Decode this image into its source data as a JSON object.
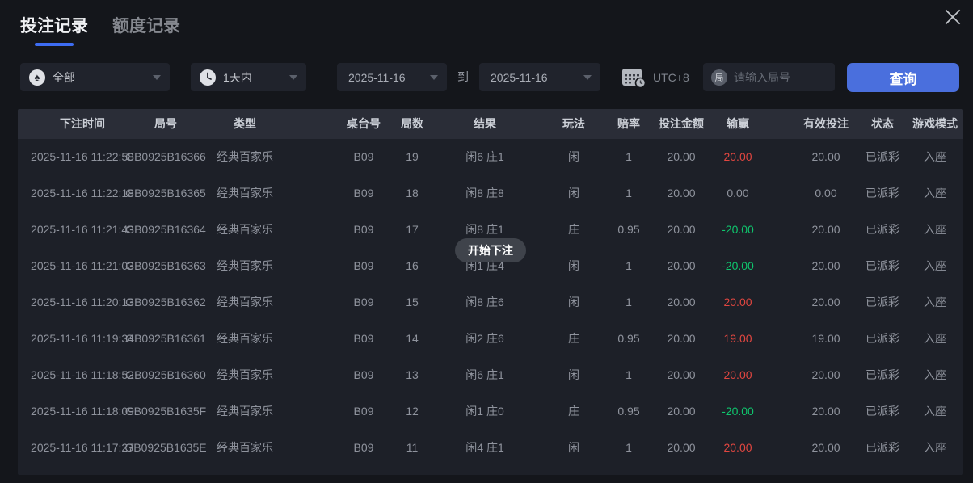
{
  "tabs": {
    "betting": "投注记录",
    "quota": "额度记录"
  },
  "filters": {
    "game_select": "全部",
    "range_select": "1天内",
    "date_from": "2025-11-16",
    "to_label": "到",
    "date_to": "2025-11-16",
    "timezone": "UTC+8",
    "round_icon_char": "局",
    "round_placeholder": "请输入局号",
    "query_button": "查询"
  },
  "toast": "开始下注",
  "table": {
    "columns": [
      "下注时间",
      "局号",
      "类型",
      "桌台号",
      "局数",
      "结果",
      "玩法",
      "赔率",
      "投注金额",
      "输赢",
      "有效投注",
      "状态",
      "游戏模式"
    ],
    "rows": [
      {
        "cells": [
          "2025-11-16 11:22:58",
          "GB0925B16366",
          "经典百家乐",
          "B09",
          "19",
          "闲6 庄1",
          "闲",
          "1",
          "20.00",
          "20.00",
          "20.00",
          "已派彩",
          "入座"
        ],
        "trend": "win"
      },
      {
        "cells": [
          "2025-11-16 11:22:18",
          "GB0925B16365",
          "经典百家乐",
          "B09",
          "18",
          "闲8 庄8",
          "闲",
          "1",
          "20.00",
          "0.00",
          "0.00",
          "已派彩",
          "入座"
        ],
        "trend": "zero"
      },
      {
        "cells": [
          "2025-11-16 11:21:43",
          "GB0925B16364",
          "经典百家乐",
          "B09",
          "17",
          "闲8 庄1",
          "庄",
          "0.95",
          "20.00",
          "-20.00",
          "20.00",
          "已派彩",
          "入座"
        ],
        "trend": "loss"
      },
      {
        "cells": [
          "2025-11-16 11:21:03",
          "GB0925B16363",
          "经典百家乐",
          "B09",
          "16",
          "闲1 庄4",
          "闲",
          "1",
          "20.00",
          "-20.00",
          "20.00",
          "已派彩",
          "入座"
        ],
        "trend": "loss"
      },
      {
        "cells": [
          "2025-11-16 11:20:13",
          "GB0925B16362",
          "经典百家乐",
          "B09",
          "15",
          "闲8 庄6",
          "闲",
          "1",
          "20.00",
          "20.00",
          "20.00",
          "已派彩",
          "入座"
        ],
        "trend": "win"
      },
      {
        "cells": [
          "2025-11-16 11:19:34",
          "GB0925B16361",
          "经典百家乐",
          "B09",
          "14",
          "闲2 庄6",
          "庄",
          "0.95",
          "20.00",
          "19.00",
          "19.00",
          "已派彩",
          "入座"
        ],
        "trend": "win"
      },
      {
        "cells": [
          "2025-11-16 11:18:52",
          "GB0925B16360",
          "经典百家乐",
          "B09",
          "13",
          "闲6 庄1",
          "闲",
          "1",
          "20.00",
          "20.00",
          "20.00",
          "已派彩",
          "入座"
        ],
        "trend": "win"
      },
      {
        "cells": [
          "2025-11-16 11:18:09",
          "GB0925B1635F",
          "经典百家乐",
          "B09",
          "12",
          "闲1 庄0",
          "庄",
          "0.95",
          "20.00",
          "-20.00",
          "20.00",
          "已派彩",
          "入座"
        ],
        "trend": "loss"
      },
      {
        "cells": [
          "2025-11-16 11:17:27",
          "GB0925B1635E",
          "经典百家乐",
          "B09",
          "11",
          "闲4 庄1",
          "闲",
          "1",
          "20.00",
          "20.00",
          "20.00",
          "已派彩",
          "入座"
        ],
        "trend": "win"
      }
    ]
  },
  "colors": {
    "accent_blue": "#4a6fdd",
    "tab_underline_blue": "#3d6cf2",
    "win_red": "#e14640",
    "loss_green": "#0fc56d",
    "page_bg": "#14161b"
  }
}
